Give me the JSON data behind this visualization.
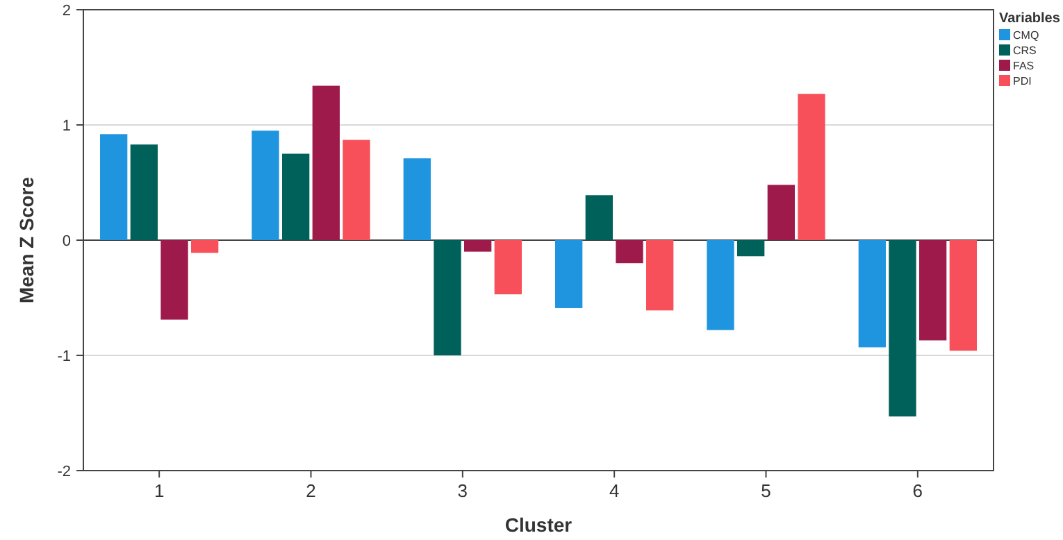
{
  "chart_data": {
    "type": "bar",
    "xlabel": "Cluster",
    "ylabel": "Mean Z Score",
    "legend_title": "Variables",
    "categories": [
      "1",
      "2",
      "3",
      "4",
      "5",
      "6"
    ],
    "series": [
      {
        "name": "CMQ",
        "color": "#1f95e0",
        "values": [
          0.92,
          0.95,
          0.71,
          -0.59,
          -0.78,
          -0.93
        ]
      },
      {
        "name": "CRS",
        "color": "#00605a",
        "values": [
          0.83,
          0.75,
          -1.0,
          0.39,
          -0.14,
          -1.53
        ]
      },
      {
        "name": "FAS",
        "color": "#9e1a4a",
        "values": [
          -0.69,
          1.34,
          -0.1,
          -0.2,
          0.48,
          -0.87
        ]
      },
      {
        "name": "PDI",
        "color": "#f7505a",
        "values": [
          -0.11,
          0.87,
          -0.47,
          -0.61,
          1.27,
          -0.96
        ]
      }
    ],
    "ylim": [
      -2,
      2
    ],
    "yticks": [
      -2,
      -1,
      0,
      1,
      2
    ],
    "grid": "y",
    "legend": "top right"
  }
}
